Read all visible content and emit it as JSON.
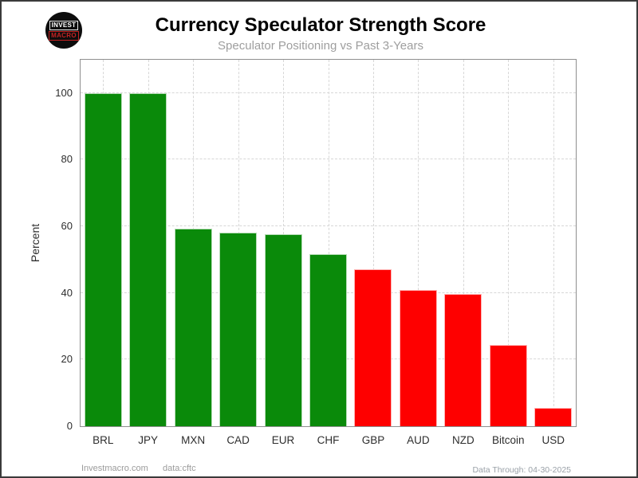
{
  "header": {
    "title": "Currency Speculator Strength Score",
    "subtitle": "Speculator Positioning vs Past 3-Years",
    "logo": {
      "line1": "INVEST",
      "line2": "MACRO"
    }
  },
  "chart_data": {
    "type": "bar",
    "title": "Currency Speculator Strength Score",
    "subtitle": "Speculator Positioning vs Past 3-Years",
    "categories": [
      "BRL",
      "JPY",
      "MXN",
      "CAD",
      "EUR",
      "CHF",
      "GBP",
      "AUD",
      "NZD",
      "Bitcoin",
      "USD"
    ],
    "values": [
      100,
      100,
      59.2,
      58,
      57.6,
      51.7,
      47,
      41,
      39.6,
      24.4,
      5.5
    ],
    "bar_colors": [
      "#0a8a0a",
      "#0a8a0a",
      "#0a8a0a",
      "#0a8a0a",
      "#0a8a0a",
      "#0a8a0a",
      "#fe0000",
      "#fe0000",
      "#fe0000",
      "#fe0000",
      "#fe0000"
    ],
    "positive_color": "#0a8a0a",
    "negative_color": "#fe0000",
    "xlabel": "",
    "ylabel": "Percent",
    "ylim": [
      0,
      110
    ],
    "yticks": [
      0,
      20,
      40,
      60,
      80,
      100
    ],
    "grid": "dashed horizontal and vertical",
    "legend": "none"
  },
  "footer": {
    "left": "Investmacro.com",
    "source": "data:cftc",
    "right": "Data Through: 04-30-2025"
  }
}
